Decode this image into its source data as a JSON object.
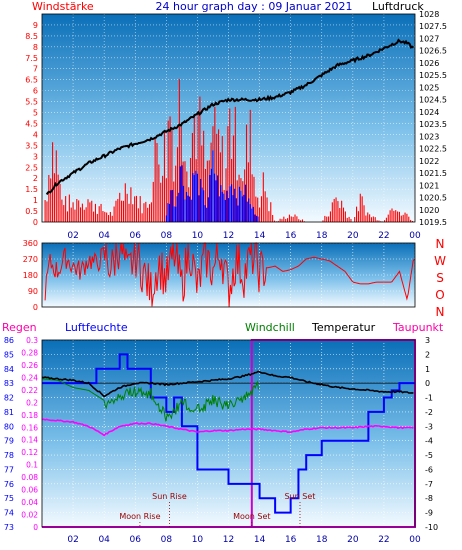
{
  "chart_data": [
    {
      "type": "line",
      "title": "24 hour graph day : 09 Januar 2021",
      "left_label": "Windstärke",
      "right_label": "Luftdruck",
      "left_ylim": [
        0,
        9.5
      ],
      "left_yticks": [
        "0",
        "0.5",
        "1",
        "1.5",
        "2",
        "2.5",
        "3",
        "3.5",
        "4",
        "4.5",
        "5",
        "5.5",
        "6",
        "6.5",
        "7",
        "7.5",
        "8",
        "8.5",
        "9"
      ],
      "right_ylim": [
        1019.5,
        1028
      ],
      "right_yticks": [
        "1019.5",
        "1020",
        "1020.5",
        "1021",
        "1021.5",
        "1022",
        "1022.5",
        "1023",
        "1023.5",
        "1024",
        "1024.5",
        "1025",
        "1025.5",
        "1026",
        "1026.5",
        "1027",
        "1027.5",
        "1028"
      ],
      "xticks": [
        "02",
        "04",
        "06",
        "08",
        "10",
        "12",
        "14",
        "16",
        "18",
        "20",
        "22",
        "00"
      ],
      "grid": true,
      "series": [
        {
          "name": "Luftdruck",
          "color": "#000000",
          "x": [
            0.3,
            1,
            2,
            3,
            4,
            5,
            6,
            7,
            8,
            9,
            10,
            11,
            12,
            13,
            14,
            15,
            16,
            17,
            18,
            19,
            20,
            21,
            22,
            23,
            23.5,
            23.9
          ],
          "values": [
            1020.6,
            1021.1,
            1021.5,
            1021.9,
            1022.2,
            1022.5,
            1022.7,
            1022.9,
            1023.2,
            1023.5,
            1023.9,
            1024.3,
            1024.5,
            1024.5,
            1024.5,
            1024.6,
            1024.8,
            1025.1,
            1025.5,
            1025.9,
            1026.1,
            1026.3,
            1026.6,
            1026.9,
            1026.8,
            1026.6
          ]
        },
        {
          "name": "Wind (gust)",
          "color": "#ff0000",
          "x": [
            0.3,
            0.6,
            1.2,
            1.8,
            2.5,
            3.5,
            4.5,
            5.5,
            6.5,
            7.0,
            7.5,
            8.0,
            8.3,
            8.6,
            8.9,
            9.2,
            9.5,
            9.8,
            10.2,
            10.6,
            11.0,
            11.4,
            11.8,
            12.2,
            12.6,
            13.0,
            13.4,
            13.8,
            14.3,
            15,
            16,
            17,
            18,
            19,
            20,
            20.5,
            21,
            22,
            22.5,
            23,
            23.5,
            23.9
          ],
          "values": [
            1.5,
            5.5,
            1.5,
            1.0,
            1.5,
            1.0,
            0.5,
            2.5,
            1.0,
            1.5,
            5.0,
            3.5,
            7.0,
            4.0,
            9.0,
            5.5,
            4.0,
            7.0,
            6.0,
            3.0,
            5.5,
            5.0,
            3.5,
            6.0,
            5.0,
            3.0,
            5.5,
            1.5,
            2.0,
            0.0,
            0.5,
            0.0,
            0.0,
            1.5,
            0.0,
            1.5,
            0.5,
            0.0,
            1.5,
            0.5,
            0.5,
            0.0
          ]
        },
        {
          "name": "Wind (mean)",
          "color": "#0000ff",
          "x": [
            8.0,
            8.3,
            8.6,
            8.9,
            9.2,
            9.5,
            9.8,
            10.2,
            10.6,
            11.0,
            11.4,
            11.8,
            12.2,
            12.6,
            13.0,
            13.4,
            13.8
          ],
          "values": [
            0.5,
            2.0,
            1.0,
            3.5,
            2.0,
            1.5,
            3.0,
            2.0,
            1.0,
            3.5,
            2.0,
            1.5,
            2.5,
            1.5,
            2.0,
            1.0,
            0.5
          ]
        }
      ]
    },
    {
      "type": "line",
      "title": "",
      "ylim": [
        0,
        360
      ],
      "yticks": [
        "0",
        "90",
        "180",
        "270",
        "360"
      ],
      "right_labels": [
        "N",
        "W",
        "S",
        "O",
        "N"
      ],
      "xticks": [
        "02",
        "04",
        "06",
        "08",
        "10",
        "12",
        "14",
        "16",
        "18",
        "20",
        "22",
        "00"
      ],
      "series": [
        {
          "name": "Windrichtung",
          "color": "#ff0000",
          "x": [
            0.2,
            0.5,
            1,
            1.5,
            2,
            2.5,
            3,
            3.5,
            4,
            4.5,
            5,
            5.5,
            6,
            6.5,
            7,
            7.5,
            8,
            8.5,
            9,
            9.5,
            10,
            10.5,
            11,
            11.5,
            12,
            12.5,
            13,
            13.5,
            14,
            14.5,
            15,
            15.5,
            16,
            16.5,
            17,
            17.5,
            18,
            18.5,
            19,
            19.5,
            20,
            20.5,
            21,
            21.5,
            22,
            22.5,
            23,
            23.5,
            23.9
          ],
          "values": [
            90,
            250,
            200,
            280,
            230,
            200,
            270,
            240,
            300,
            220,
            360,
            180,
            300,
            200,
            90,
            250,
            150,
            300,
            120,
            330,
            100,
            290,
            200,
            320,
            90,
            270,
            180,
            300,
            200,
            220,
            230,
            200,
            210,
            230,
            270,
            280,
            270,
            260,
            230,
            200,
            140,
            130,
            130,
            140,
            140,
            140,
            200,
            40,
            270
          ]
        }
      ]
    },
    {
      "type": "line",
      "title": "",
      "legend": [
        "Regen",
        "Luftfeuchte",
        "Windchill",
        "Temperatur",
        "Taupunkt"
      ],
      "regen_ylim": [
        0,
        0.3
      ],
      "regen_yticks": [
        "0",
        "0.02",
        "0.04",
        "0.06",
        "0.08",
        "0.1",
        "0.12",
        "0.14",
        "0.16",
        "0.18",
        "0.2",
        "0.22",
        "0.24",
        "0.26",
        "0.28",
        "0.3"
      ],
      "humidity_ylim": [
        73,
        86
      ],
      "humidity_yticks": [
        "73",
        "74",
        "75",
        "76",
        "77",
        "78",
        "79",
        "80",
        "81",
        "82",
        "83",
        "84",
        "85",
        "86"
      ],
      "temp_ylim": [
        -10,
        3
      ],
      "temp_yticks": [
        "-10",
        "-9",
        "-8",
        "-7",
        "-6",
        "-5",
        "-4",
        "-3",
        "-2",
        "-1",
        "0",
        "1",
        "2",
        "3"
      ],
      "xticks": [
        "02",
        "04",
        "06",
        "08",
        "10",
        "12",
        "14",
        "16",
        "18",
        "20",
        "22",
        "00"
      ],
      "annotations": [
        {
          "text": "Moon Rise",
          "x": 6.3
        },
        {
          "text": "Sun Rise",
          "x": 8.2
        },
        {
          "text": "Moon Set",
          "x": 13.5
        },
        {
          "text": "Sun Set",
          "x": 16.6
        }
      ],
      "series": [
        {
          "name": "Luftfeuchte",
          "color": "#0000ff",
          "x": [
            0,
            3,
            3.5,
            4.5,
            5,
            5.5,
            7,
            8,
            8.5,
            9,
            10,
            12,
            13.5,
            14,
            15,
            15.5,
            16,
            16.5,
            17,
            18,
            19,
            20,
            21,
            22,
            22.5,
            23,
            24
          ],
          "values": [
            83,
            83,
            84,
            84,
            85,
            84,
            82,
            81,
            82,
            80,
            77,
            76,
            76,
            75,
            74,
            74,
            75,
            77,
            78,
            79,
            79,
            79,
            81,
            82,
            82.5,
            83,
            83
          ]
        },
        {
          "name": "Temperatur",
          "color": "#000000",
          "x": [
            0,
            1,
            2,
            3,
            4,
            5,
            6,
            7,
            8,
            9,
            10,
            11,
            12,
            13,
            14,
            15,
            16,
            17,
            18,
            19,
            20,
            21,
            22,
            23,
            24
          ],
          "values": [
            0.4,
            0.3,
            0.2,
            0.0,
            -0.9,
            -0.3,
            0.0,
            0.0,
            -0.1,
            0.0,
            0.1,
            0.2,
            0.3,
            0.5,
            0.8,
            0.5,
            0.4,
            0.1,
            -0.1,
            -0.3,
            -0.4,
            -0.5,
            -0.6,
            -0.6,
            -0.7
          ]
        },
        {
          "name": "Windchill",
          "color": "#008000",
          "x": [
            0,
            1,
            2,
            3,
            4,
            5,
            6,
            7,
            8,
            9,
            10,
            11,
            12,
            13,
            14
          ],
          "values": [
            0.3,
            0.2,
            -0.3,
            -0.5,
            -1.2,
            -0.5,
            -0.2,
            -0.3,
            -2.0,
            -1.0,
            -1.5,
            -0.8,
            -1.2,
            -0.5,
            0.3
          ]
        },
        {
          "name": "Taupunkt",
          "color": "#ff00ff",
          "x": [
            0,
            1,
            2,
            3,
            4,
            5,
            6,
            7,
            8,
            9,
            10,
            11,
            12,
            13,
            14,
            15,
            16,
            17,
            18,
            19,
            20,
            21,
            22,
            23,
            24
          ],
          "values": [
            -2.5,
            -2.6,
            -2.7,
            -3.0,
            -3.6,
            -3.0,
            -2.8,
            -2.8,
            -3.0,
            -3.2,
            -3.4,
            -3.3,
            -3.3,
            -3.2,
            -3.2,
            -3.3,
            -3.4,
            -3.2,
            -3.1,
            -3.1,
            -3.1,
            -3.0,
            -3.0,
            -3.1,
            -3.1
          ]
        },
        {
          "name": "Regen",
          "color": "#ff00ff",
          "x": [
            0,
            24
          ],
          "values": [
            0,
            0
          ]
        }
      ]
    }
  ]
}
